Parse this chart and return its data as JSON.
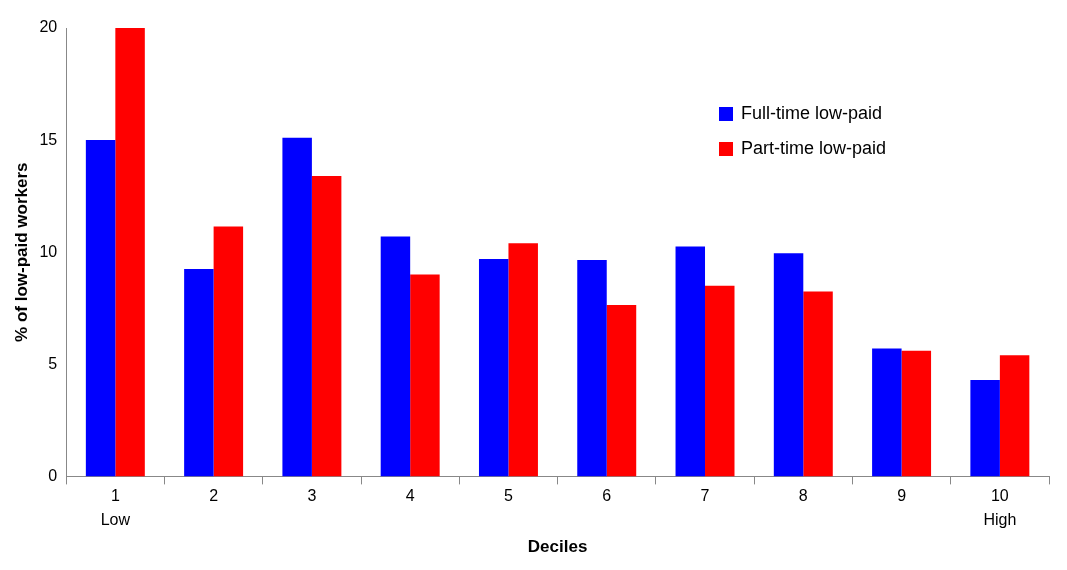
{
  "chart_data": {
    "type": "bar",
    "xlabel": "Deciles",
    "ylabel": "% of low-paid workers",
    "categories": [
      "1",
      "2",
      "3",
      "4",
      "5",
      "6",
      "7",
      "8",
      "9",
      "10"
    ],
    "series": [
      {
        "name": "Full-time low-paid",
        "color": "#0000ff",
        "values": [
          15.0,
          9.25,
          15.1,
          10.7,
          9.7,
          9.65,
          10.25,
          9.95,
          5.7,
          4.3
        ]
      },
      {
        "name": "Part-time low-paid",
        "color": "#ff0000",
        "values": [
          20.0,
          11.15,
          13.4,
          9.0,
          10.4,
          7.65,
          8.5,
          8.25,
          5.6,
          5.4
        ]
      }
    ],
    "ylim": [
      0,
      20
    ],
    "yticks": [
      0,
      5,
      10,
      15,
      20
    ],
    "grid": false,
    "legend": "top right",
    "annotations": [
      "Low",
      "High"
    ]
  }
}
